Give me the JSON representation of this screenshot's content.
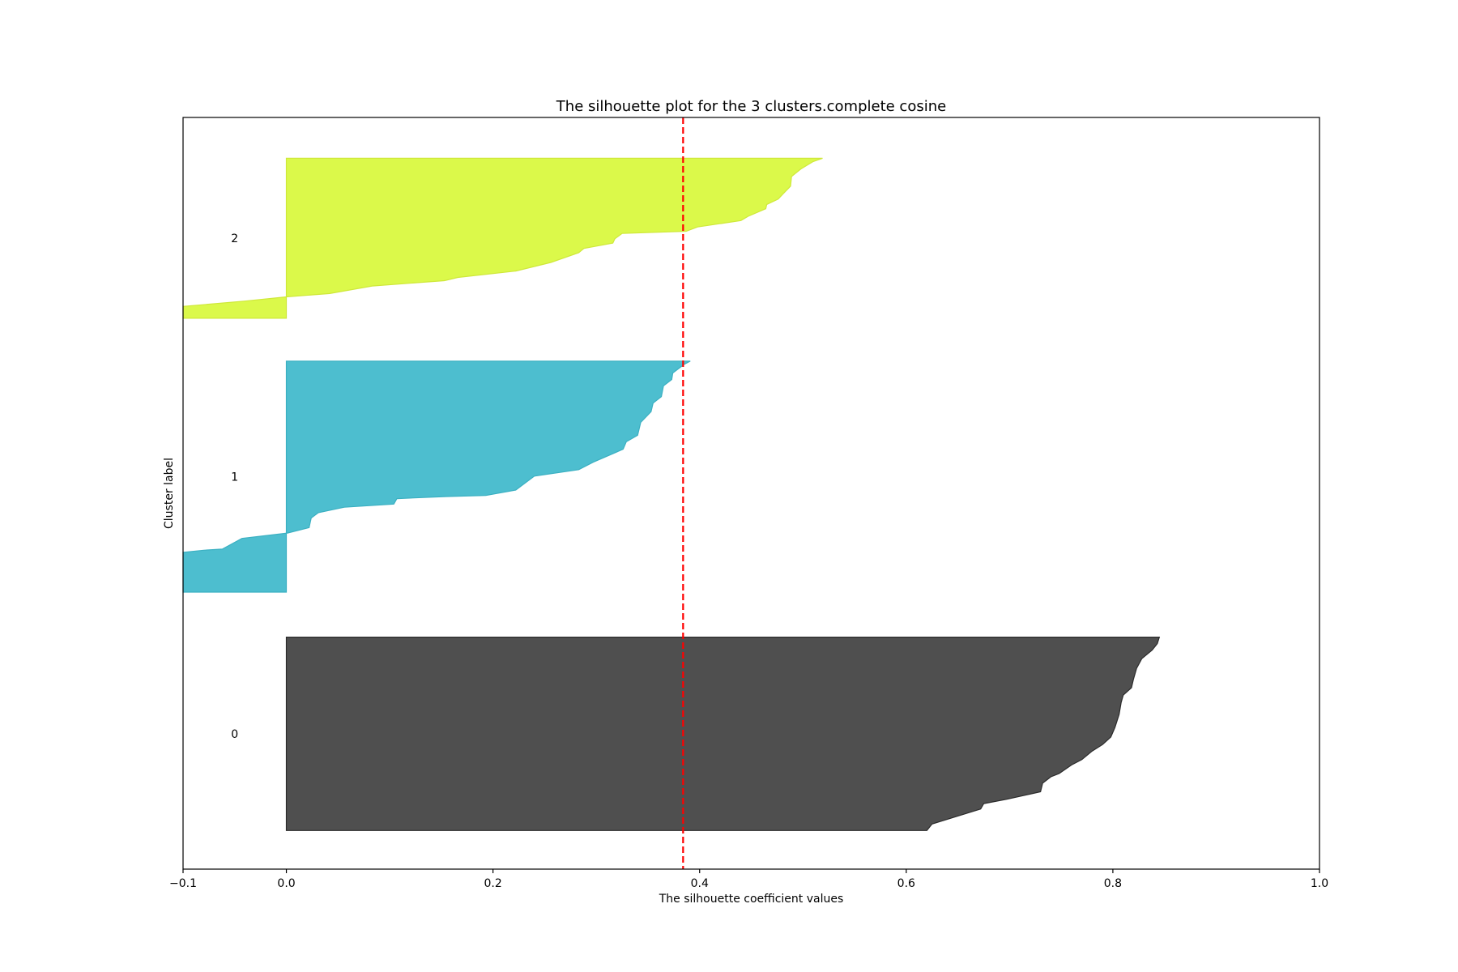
{
  "chart_data": {
    "type": "area",
    "title": "The silhouette plot for the 3 clusters.complete cosine",
    "xlabel": "The silhouette coefficient values",
    "ylabel": "Cluster label",
    "xlim": [
      -0.1,
      1.0
    ],
    "ylim": [
      0,
      70
    ],
    "x_ticks": [
      {
        "value": -0.1,
        "label": "−0.1"
      },
      {
        "value": 0.0,
        "label": "0.0"
      },
      {
        "value": 0.2,
        "label": "0.2"
      },
      {
        "value": 0.4,
        "label": "0.4"
      },
      {
        "value": 0.6,
        "label": "0.6"
      },
      {
        "value": 0.8,
        "label": "0.8"
      },
      {
        "value": 1.0,
        "label": "1.0"
      }
    ],
    "grid": false,
    "average_silhouette": 0.384,
    "average_line_color": "#ff0000",
    "clusters": [
      {
        "label": "0",
        "color": "#4f4f4f",
        "edge_color": "#2b2b2b",
        "y_lower": 3.6,
        "y_upper": 21.6,
        "profile": [
          [
            0.845,
            21.6
          ],
          [
            0.843,
            21.0
          ],
          [
            0.838,
            20.4
          ],
          [
            0.828,
            19.6
          ],
          [
            0.823,
            18.7
          ],
          [
            0.82,
            17.7
          ],
          [
            0.818,
            16.9
          ],
          [
            0.81,
            16.2
          ],
          [
            0.808,
            15.5
          ],
          [
            0.806,
            14.4
          ],
          [
            0.802,
            13.2
          ],
          [
            0.798,
            12.3
          ],
          [
            0.79,
            11.6
          ],
          [
            0.78,
            11.0
          ],
          [
            0.77,
            10.2
          ],
          [
            0.76,
            9.7
          ],
          [
            0.748,
            8.9
          ],
          [
            0.74,
            8.6
          ],
          [
            0.732,
            8.0
          ],
          [
            0.73,
            7.2
          ],
          [
            0.697,
            6.5
          ],
          [
            0.675,
            6.1
          ],
          [
            0.672,
            5.6
          ],
          [
            0.625,
            4.2
          ],
          [
            0.62,
            3.6
          ]
        ]
      },
      {
        "label": "1",
        "color": "#4dbecf",
        "edge_color": "#3bb0c2",
        "y_lower": 25.8,
        "y_upper": 47.3,
        "profile": [
          [
            0.391,
            47.3
          ],
          [
            0.385,
            47.0
          ],
          [
            0.374,
            46.2
          ],
          [
            0.373,
            45.6
          ],
          [
            0.365,
            45.0
          ],
          [
            0.363,
            44.0
          ],
          [
            0.355,
            43.4
          ],
          [
            0.353,
            42.6
          ],
          [
            0.343,
            41.6
          ],
          [
            0.34,
            40.4
          ],
          [
            0.329,
            39.8
          ],
          [
            0.326,
            39.1
          ],
          [
            0.297,
            37.9
          ],
          [
            0.283,
            37.2
          ],
          [
            0.24,
            36.6
          ],
          [
            0.222,
            35.3
          ],
          [
            0.193,
            34.8
          ],
          [
            0.155,
            34.7
          ],
          [
            0.107,
            34.5
          ],
          [
            0.104,
            34.0
          ],
          [
            0.056,
            33.7
          ],
          [
            0.031,
            33.2
          ],
          [
            0.024,
            32.7
          ],
          [
            0.022,
            31.8
          ],
          [
            0.001,
            31.3
          ],
          [
            -0.043,
            30.8
          ],
          [
            -0.062,
            29.8
          ],
          [
            -0.08,
            29.7
          ],
          [
            -0.1,
            29.5
          ],
          [
            -0.1,
            25.8
          ],
          [
            0.0,
            25.8
          ]
        ]
      },
      {
        "label": "2",
        "color": "#dbf94a",
        "edge_color": "#cfe83a",
        "y_lower": 51.3,
        "y_upper": 66.2,
        "profile": [
          [
            0.519,
            66.2
          ],
          [
            0.51,
            65.9
          ],
          [
            0.498,
            65.2
          ],
          [
            0.489,
            64.5
          ],
          [
            0.488,
            63.6
          ],
          [
            0.481,
            62.9
          ],
          [
            0.476,
            62.4
          ],
          [
            0.465,
            61.9
          ],
          [
            0.464,
            61.5
          ],
          [
            0.447,
            60.8
          ],
          [
            0.44,
            60.4
          ],
          [
            0.398,
            59.8
          ],
          [
            0.387,
            59.4
          ],
          [
            0.325,
            59.2
          ],
          [
            0.318,
            58.7
          ],
          [
            0.316,
            58.3
          ],
          [
            0.288,
            57.8
          ],
          [
            0.283,
            57.4
          ],
          [
            0.256,
            56.5
          ],
          [
            0.222,
            55.7
          ],
          [
            0.166,
            55.1
          ],
          [
            0.153,
            54.8
          ],
          [
            0.083,
            54.3
          ],
          [
            0.042,
            53.6
          ],
          [
            0.001,
            53.3
          ],
          [
            -0.04,
            52.9
          ],
          [
            -0.1,
            52.4
          ],
          [
            -0.1,
            51.3
          ],
          [
            0.0,
            51.3
          ]
        ]
      }
    ]
  }
}
